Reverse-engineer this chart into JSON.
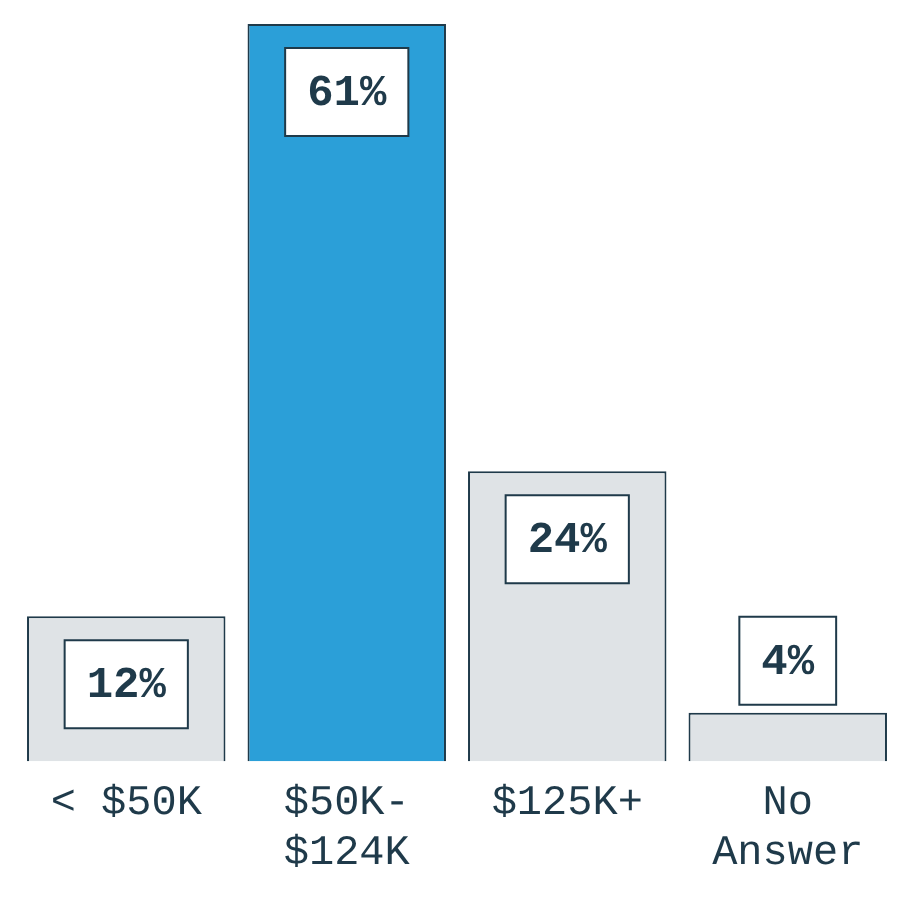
{
  "chart_data": {
    "type": "bar",
    "categories": [
      "< $50K",
      "$50K-$124K",
      "$125K+",
      "No Answer"
    ],
    "values": [
      12,
      61,
      24,
      4
    ],
    "colors": [
      "#dfe3e6",
      "#2b9fd8",
      "#dfe3e6",
      "#dfe3e6"
    ],
    "value_labels": [
      "12%",
      "61%",
      "24%",
      "4%"
    ],
    "grid": false,
    "legend": false
  }
}
